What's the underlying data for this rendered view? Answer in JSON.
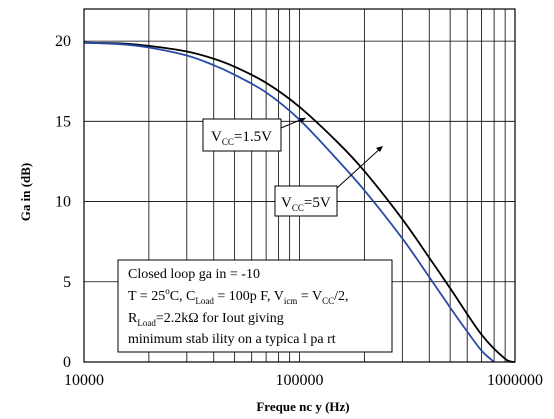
{
  "chart_data": {
    "type": "line",
    "xscale": "log",
    "xlim": [
      10000,
      1000000
    ],
    "ylim": [
      0,
      22
    ],
    "grid": true,
    "xlabel": "Freque nc y (Hz)",
    "ylabel": "Ga in (dB)",
    "xticks": [
      "10000",
      "100000",
      "1000000"
    ],
    "yticks": [
      "0",
      "5",
      "10",
      "15",
      "20"
    ],
    "series": [
      {
        "name": "VCC=1.5V",
        "color": "#000000",
        "x": [
          10000,
          15000,
          20000,
          30000,
          40000,
          50000,
          70000,
          100000,
          150000,
          200000,
          300000,
          400000,
          500000,
          700000,
          900000,
          1000000
        ],
        "y": [
          19.9,
          19.85,
          19.7,
          19.35,
          18.9,
          18.4,
          17.4,
          15.9,
          13.7,
          11.9,
          8.9,
          6.5,
          4.6,
          1.7,
          0.2,
          0.0
        ]
      },
      {
        "name": "VCC=5V",
        "color": "#2a4aa8",
        "x": [
          10000,
          15000,
          20000,
          30000,
          40000,
          50000,
          70000,
          100000,
          150000,
          200000,
          300000,
          400000,
          500000,
          600000,
          700000,
          800000
        ],
        "y": [
          19.9,
          19.8,
          19.6,
          19.1,
          18.5,
          17.9,
          16.8,
          15.1,
          12.6,
          10.7,
          7.7,
          5.3,
          3.4,
          1.9,
          0.7,
          0.0
        ]
      }
    ],
    "annotations": {
      "vcc15": {
        "prefix": "V",
        "sub": "CC",
        "suffix": "=1.5V"
      },
      "vcc5": {
        "prefix": "V",
        "sub": "CC",
        "suffix": "=5V"
      },
      "conditions": {
        "line1": "Closed  loop  ga in  = -10",
        "line2a": "T = 25",
        "line2b": "o",
        "line2c": "C, C",
        "line2d": "Load",
        "line2e": " = 100p F,  V",
        "line2f": "icm",
        "line2g": " = V",
        "line2h": "CC",
        "line2i": "/2,",
        "line3a": "R",
        "line3b": "Load",
        "line3c": "=2.2kΩ  for Iout giving",
        "line4": "minimum  stab ility  on  a  typica l pa rt"
      }
    }
  }
}
